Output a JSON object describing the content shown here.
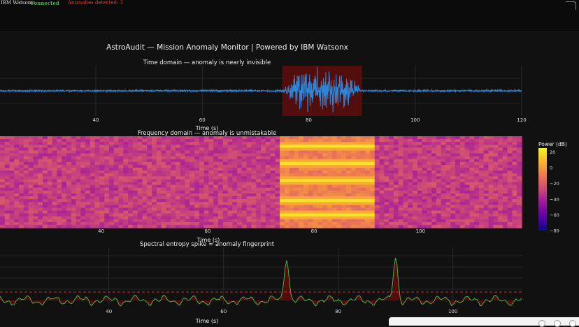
{
  "status": {
    "app_name": "IBM Watsonx:",
    "connection": "Connected",
    "anomalies": "Anomalies detected: 3",
    "colors": {
      "connected": "#4caf50",
      "anomalies": "#e53935"
    }
  },
  "chart_data": {
    "title": "AstroAudit — Mission Anomaly Monitor | Powered by IBM Watsonx",
    "panels": [
      {
        "type": "line",
        "title": "Time domain — anomaly is nearly invisible",
        "xlabel": "Time (s)",
        "xticks": [
          40,
          60,
          80,
          100,
          120
        ],
        "xlim": [
          22,
          120
        ],
        "baseline": 0,
        "noise_amplitude": 0.02,
        "anomaly_window": [
          75,
          90
        ],
        "burst_amplitude": 0.6,
        "colors": {
          "line": "#2f86d6",
          "highlight": "#5a0d0d"
        }
      },
      {
        "type": "heatmap",
        "title": "Frequency domain — anomaly is unmistakable",
        "xlabel": "Time (s)",
        "xticks": [
          40,
          60,
          80,
          100
        ],
        "xlim": [
          21,
          119
        ],
        "anomaly_window": [
          74,
          91.5
        ],
        "colorbar": {
          "title": "Power (dB)",
          "ticks": [
            20,
            0,
            -20,
            -40,
            -60,
            -80
          ],
          "range": [
            -80,
            25
          ]
        },
        "colorscale": [
          "#0d0887",
          "#5c01a6",
          "#9c179e",
          "#cc4778",
          "#ed7953",
          "#fdb42f",
          "#f0f921"
        ]
      },
      {
        "type": "area",
        "title": "Spectral entropy spike = anomaly fingerprint",
        "xlabel": "Time (s)",
        "xticks": [
          40,
          60,
          80,
          100
        ],
        "xlim": [
          21,
          112
        ],
        "threshold": 1.0,
        "baseline": 0,
        "spikes": [
          {
            "x": 71,
            "y": 5.4
          },
          {
            "x": 90,
            "y": 5.4
          }
        ],
        "colors": {
          "line": "#49b049",
          "fill": "#5a0d0d",
          "threshold": "#d62728"
        }
      }
    ]
  }
}
